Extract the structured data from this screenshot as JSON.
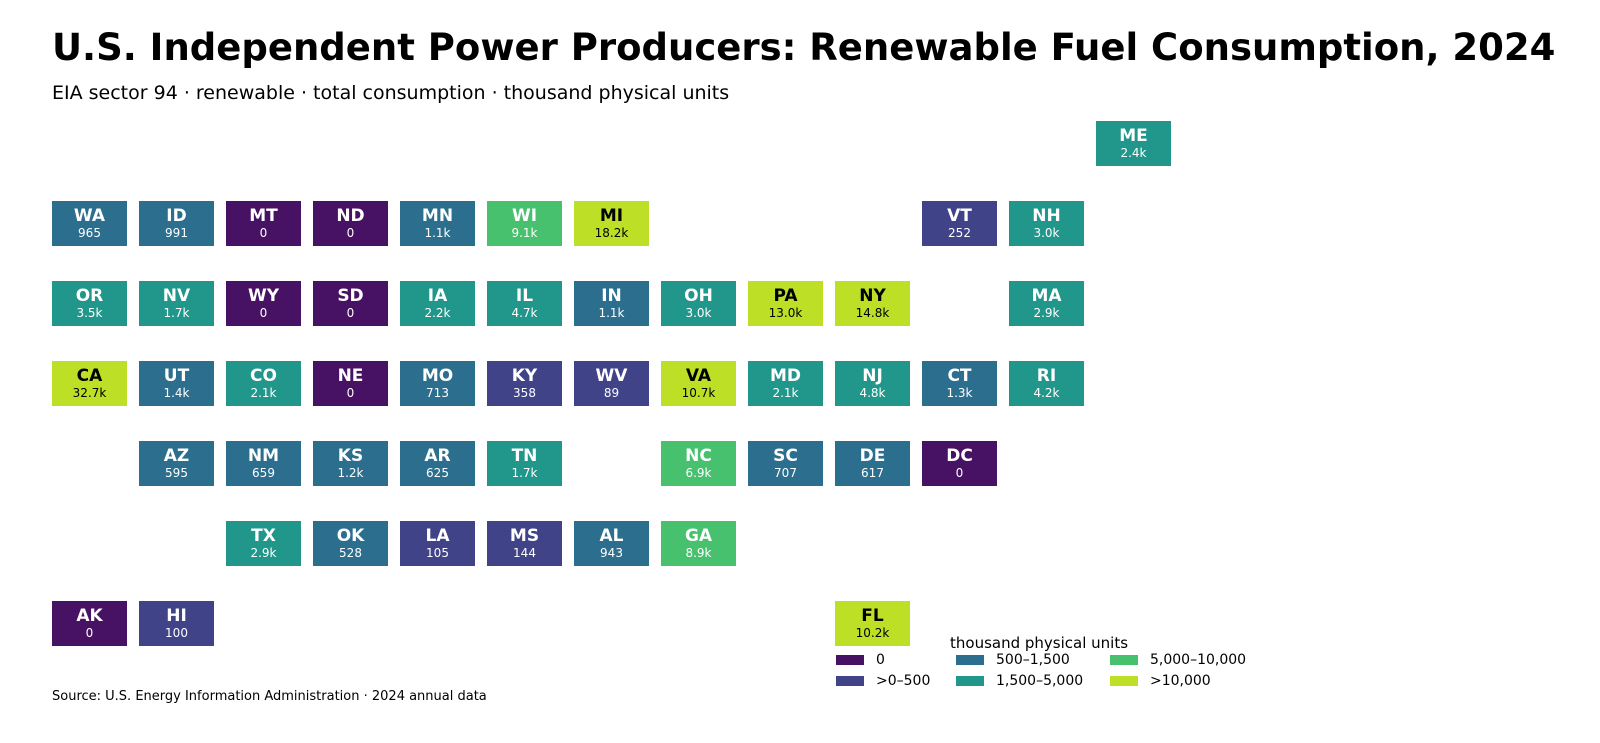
{
  "title": "U.S. Independent Power Producers: Renewable Fuel Consumption, 2024",
  "subtitle": "EIA sector 94 · renewable · total consumption · thousand physical units",
  "source": "Source: U.S. Energy Information Administration · 2024 annual data",
  "legend": {
    "title": "thousand physical units",
    "items": [
      {
        "label": "0",
        "color": "#471164"
      },
      {
        "label": ">0–500",
        "color": "#404387"
      },
      {
        "label": "500–1,500",
        "color": "#2c6e8e"
      },
      {
        "label": "1,500–5,000",
        "color": "#21968b"
      },
      {
        "label": "5,000–10,000",
        "color": "#47c16e"
      },
      {
        "label": ">10,000",
        "color": "#bddf26"
      }
    ]
  },
  "chart_data": {
    "type": "tile-map",
    "unit": "thousand physical units",
    "states": [
      {
        "abbr": "ME",
        "label": "2.4k",
        "value": 2400,
        "row": 0,
        "col": 12,
        "color": "#21968b",
        "text": "light"
      },
      {
        "abbr": "WA",
        "label": "965",
        "value": 965,
        "row": 1,
        "col": 0,
        "color": "#2c6e8e",
        "text": "light"
      },
      {
        "abbr": "ID",
        "label": "991",
        "value": 991,
        "row": 1,
        "col": 1,
        "color": "#2c6e8e",
        "text": "light"
      },
      {
        "abbr": "MT",
        "label": "0",
        "value": 0,
        "row": 1,
        "col": 2,
        "color": "#471164",
        "text": "light"
      },
      {
        "abbr": "ND",
        "label": "0",
        "value": 0,
        "row": 1,
        "col": 3,
        "color": "#471164",
        "text": "light"
      },
      {
        "abbr": "MN",
        "label": "1.1k",
        "value": 1100,
        "row": 1,
        "col": 4,
        "color": "#2c6e8e",
        "text": "light"
      },
      {
        "abbr": "WI",
        "label": "9.1k",
        "value": 9100,
        "row": 1,
        "col": 5,
        "color": "#47c16e",
        "text": "light"
      },
      {
        "abbr": "MI",
        "label": "18.2k",
        "value": 18200,
        "row": 1,
        "col": 6,
        "color": "#bddf26",
        "text": "dark"
      },
      {
        "abbr": "VT",
        "label": "252",
        "value": 252,
        "row": 1,
        "col": 10,
        "color": "#404387",
        "text": "light"
      },
      {
        "abbr": "NH",
        "label": "3.0k",
        "value": 3000,
        "row": 1,
        "col": 11,
        "color": "#21968b",
        "text": "light"
      },
      {
        "abbr": "OR",
        "label": "3.5k",
        "value": 3500,
        "row": 2,
        "col": 0,
        "color": "#21968b",
        "text": "light"
      },
      {
        "abbr": "NV",
        "label": "1.7k",
        "value": 1700,
        "row": 2,
        "col": 1,
        "color": "#21968b",
        "text": "light"
      },
      {
        "abbr": "WY",
        "label": "0",
        "value": 0,
        "row": 2,
        "col": 2,
        "color": "#471164",
        "text": "light"
      },
      {
        "abbr": "SD",
        "label": "0",
        "value": 0,
        "row": 2,
        "col": 3,
        "color": "#471164",
        "text": "light"
      },
      {
        "abbr": "IA",
        "label": "2.2k",
        "value": 2200,
        "row": 2,
        "col": 4,
        "color": "#21968b",
        "text": "light"
      },
      {
        "abbr": "IL",
        "label": "4.7k",
        "value": 4700,
        "row": 2,
        "col": 5,
        "color": "#21968b",
        "text": "light"
      },
      {
        "abbr": "IN",
        "label": "1.1k",
        "value": 1100,
        "row": 2,
        "col": 6,
        "color": "#2c6e8e",
        "text": "light"
      },
      {
        "abbr": "OH",
        "label": "3.0k",
        "value": 3000,
        "row": 2,
        "col": 7,
        "color": "#21968b",
        "text": "light"
      },
      {
        "abbr": "PA",
        "label": "13.0k",
        "value": 13000,
        "row": 2,
        "col": 8,
        "color": "#bddf26",
        "text": "dark"
      },
      {
        "abbr": "NY",
        "label": "14.8k",
        "value": 14800,
        "row": 2,
        "col": 9,
        "color": "#bddf26",
        "text": "dark"
      },
      {
        "abbr": "MA",
        "label": "2.9k",
        "value": 2900,
        "row": 2,
        "col": 11,
        "color": "#21968b",
        "text": "light"
      },
      {
        "abbr": "CA",
        "label": "32.7k",
        "value": 32700,
        "row": 3,
        "col": 0,
        "color": "#bddf26",
        "text": "dark"
      },
      {
        "abbr": "UT",
        "label": "1.4k",
        "value": 1400,
        "row": 3,
        "col": 1,
        "color": "#2c6e8e",
        "text": "light"
      },
      {
        "abbr": "CO",
        "label": "2.1k",
        "value": 2100,
        "row": 3,
        "col": 2,
        "color": "#21968b",
        "text": "light"
      },
      {
        "abbr": "NE",
        "label": "0",
        "value": 0,
        "row": 3,
        "col": 3,
        "color": "#471164",
        "text": "light"
      },
      {
        "abbr": "MO",
        "label": "713",
        "value": 713,
        "row": 3,
        "col": 4,
        "color": "#2c6e8e",
        "text": "light"
      },
      {
        "abbr": "KY",
        "label": "358",
        "value": 358,
        "row": 3,
        "col": 5,
        "color": "#404387",
        "text": "light"
      },
      {
        "abbr": "WV",
        "label": "89",
        "value": 89,
        "row": 3,
        "col": 6,
        "color": "#404387",
        "text": "light"
      },
      {
        "abbr": "VA",
        "label": "10.7k",
        "value": 10700,
        "row": 3,
        "col": 7,
        "color": "#bddf26",
        "text": "dark"
      },
      {
        "abbr": "MD",
        "label": "2.1k",
        "value": 2100,
        "row": 3,
        "col": 8,
        "color": "#21968b",
        "text": "light"
      },
      {
        "abbr": "NJ",
        "label": "4.8k",
        "value": 4800,
        "row": 3,
        "col": 9,
        "color": "#21968b",
        "text": "light"
      },
      {
        "abbr": "CT",
        "label": "1.3k",
        "value": 1300,
        "row": 3,
        "col": 10,
        "color": "#2c6e8e",
        "text": "light"
      },
      {
        "abbr": "RI",
        "label": "4.2k",
        "value": 4200,
        "row": 3,
        "col": 11,
        "color": "#21968b",
        "text": "light"
      },
      {
        "abbr": "AZ",
        "label": "595",
        "value": 595,
        "row": 4,
        "col": 1,
        "color": "#2c6e8e",
        "text": "light"
      },
      {
        "abbr": "NM",
        "label": "659",
        "value": 659,
        "row": 4,
        "col": 2,
        "color": "#2c6e8e",
        "text": "light"
      },
      {
        "abbr": "KS",
        "label": "1.2k",
        "value": 1200,
        "row": 4,
        "col": 3,
        "color": "#2c6e8e",
        "text": "light"
      },
      {
        "abbr": "AR",
        "label": "625",
        "value": 625,
        "row": 4,
        "col": 4,
        "color": "#2c6e8e",
        "text": "light"
      },
      {
        "abbr": "TN",
        "label": "1.7k",
        "value": 1700,
        "row": 4,
        "col": 5,
        "color": "#21968b",
        "text": "light"
      },
      {
        "abbr": "NC",
        "label": "6.9k",
        "value": 6900,
        "row": 4,
        "col": 7,
        "color": "#47c16e",
        "text": "light"
      },
      {
        "abbr": "SC",
        "label": "707",
        "value": 707,
        "row": 4,
        "col": 8,
        "color": "#2c6e8e",
        "text": "light"
      },
      {
        "abbr": "DE",
        "label": "617",
        "value": 617,
        "row": 4,
        "col": 9,
        "color": "#2c6e8e",
        "text": "light"
      },
      {
        "abbr": "DC",
        "label": "0",
        "value": 0,
        "row": 4,
        "col": 10,
        "color": "#471164",
        "text": "light"
      },
      {
        "abbr": "TX",
        "label": "2.9k",
        "value": 2900,
        "row": 5,
        "col": 2,
        "color": "#21968b",
        "text": "light"
      },
      {
        "abbr": "OK",
        "label": "528",
        "value": 528,
        "row": 5,
        "col": 3,
        "color": "#2c6e8e",
        "text": "light"
      },
      {
        "abbr": "LA",
        "label": "105",
        "value": 105,
        "row": 5,
        "col": 4,
        "color": "#404387",
        "text": "light"
      },
      {
        "abbr": "MS",
        "label": "144",
        "value": 144,
        "row": 5,
        "col": 5,
        "color": "#404387",
        "text": "light"
      },
      {
        "abbr": "AL",
        "label": "943",
        "value": 943,
        "row": 5,
        "col": 6,
        "color": "#2c6e8e",
        "text": "light"
      },
      {
        "abbr": "GA",
        "label": "8.9k",
        "value": 8900,
        "row": 5,
        "col": 7,
        "color": "#47c16e",
        "text": "light"
      },
      {
        "abbr": "AK",
        "label": "0",
        "value": 0,
        "row": 6,
        "col": 0,
        "color": "#471164",
        "text": "light"
      },
      {
        "abbr": "HI",
        "label": "100",
        "value": 100,
        "row": 6,
        "col": 1,
        "color": "#404387",
        "text": "light"
      },
      {
        "abbr": "FL",
        "label": "10.2k",
        "value": 10200,
        "row": 6,
        "col": 9,
        "color": "#bddf26",
        "text": "dark"
      }
    ]
  }
}
